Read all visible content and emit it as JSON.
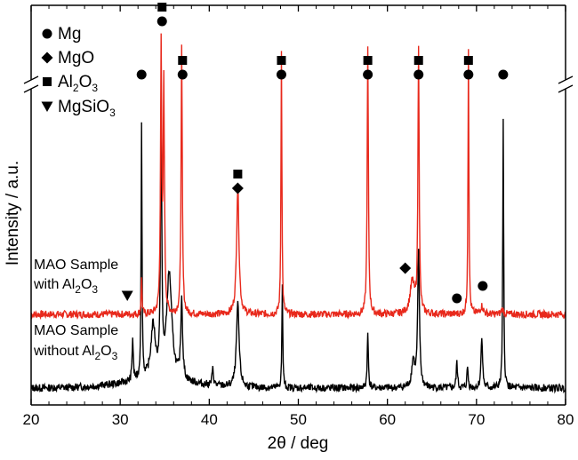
{
  "chart_data": {
    "type": "line",
    "xlabel": "2θ / deg",
    "ylabel": "Intensity / a.u.",
    "xlim": [
      20,
      80
    ],
    "xticks": [
      "20",
      "30",
      "40",
      "50",
      "60",
      "70",
      "80"
    ],
    "x_minor_step": 2,
    "y_axis_broken": true,
    "colors": {
      "with": "#e8291c",
      "without": "#000000",
      "axis": "#000000"
    },
    "legend": [
      {
        "marker": "circle",
        "base": "Mg",
        "sub": "",
        "tail": ""
      },
      {
        "marker": "diamond",
        "base": "MgO",
        "sub": "",
        "tail": ""
      },
      {
        "marker": "square",
        "base": "Al",
        "sub": "2",
        "tail": "O",
        "sub2": "3"
      },
      {
        "marker": "triangle-down",
        "base": "MgSiO",
        "sub": "3",
        "tail": ""
      }
    ],
    "series": [
      {
        "key": "with",
        "label_line1": "MAO Sample",
        "label_line2_base": "with Al",
        "label_line2_sub": "2",
        "label_line2_tail": "O",
        "label_line2_sub2": "3",
        "baseline": 1.0,
        "peaks": [
          [
            32.4,
            1.3,
            0.06
          ],
          [
            34.6,
            10.0,
            0.08
          ],
          [
            34.9,
            8.5,
            0.08
          ],
          [
            36.9,
            10.0,
            0.08
          ],
          [
            43.2,
            4.8,
            0.16
          ],
          [
            48.1,
            10.0,
            0.06
          ],
          [
            57.8,
            10.0,
            0.08
          ],
          [
            62.8,
            1.2,
            0.3
          ],
          [
            63.5,
            10.0,
            0.08
          ],
          [
            69.1,
            10.0,
            0.06
          ],
          [
            70.6,
            0.3,
            0.2
          ],
          [
            72.9,
            0.2,
            0.15
          ]
        ]
      },
      {
        "key": "without",
        "label_line1": "MAO Sample",
        "label_line2_base": "without Al",
        "label_line2_sub": "2",
        "label_line2_tail": "O",
        "label_line2_sub2": "3",
        "baseline": 0.0,
        "peaks": [
          [
            31.4,
            1.6,
            0.08
          ],
          [
            32.4,
            9.5,
            0.06
          ],
          [
            33.7,
            2.0,
            0.3
          ],
          [
            34.6,
            10.0,
            0.08
          ],
          [
            35.5,
            4.0,
            0.35
          ],
          [
            36.9,
            3.0,
            0.12
          ],
          [
            40.4,
            0.6,
            0.1
          ],
          [
            43.2,
            3.1,
            0.18
          ],
          [
            48.2,
            3.8,
            0.06
          ],
          [
            57.8,
            2.0,
            0.08
          ],
          [
            62.9,
            1.0,
            0.2
          ],
          [
            63.5,
            5.0,
            0.12
          ],
          [
            67.8,
            1.0,
            0.08
          ],
          [
            69.0,
            0.8,
            0.08
          ],
          [
            70.6,
            2.0,
            0.1
          ],
          [
            73.0,
            10.0,
            0.06
          ]
        ]
      }
    ],
    "annotations": [
      {
        "x": 32.4,
        "symbols": [
          "circle"
        ],
        "level": "high"
      },
      {
        "x": 34.7,
        "symbols": [
          "circle",
          "square"
        ],
        "level": "top"
      },
      {
        "x": 37.0,
        "symbols": [
          "circle",
          "square"
        ],
        "level": "high"
      },
      {
        "x": 43.2,
        "symbols": [
          "diamond",
          "square"
        ],
        "level": "mid"
      },
      {
        "x": 48.1,
        "symbols": [
          "circle",
          "square"
        ],
        "level": "high"
      },
      {
        "x": 57.8,
        "symbols": [
          "circle",
          "square"
        ],
        "level": "high"
      },
      {
        "x": 63.5,
        "symbols": [
          "circle",
          "square"
        ],
        "level": "high"
      },
      {
        "x": 69.1,
        "symbols": [
          "circle",
          "square"
        ],
        "level": "high"
      },
      {
        "x": 73.0,
        "symbols": [
          "circle"
        ],
        "level": "high"
      },
      {
        "x": 62.0,
        "symbols": [
          "diamond"
        ],
        "level": "low"
      },
      {
        "x": 67.8,
        "symbols": [
          "circle"
        ],
        "level": "lower"
      },
      {
        "x": 70.7,
        "symbols": [
          "circle"
        ],
        "level": "lowish"
      },
      {
        "x": 30.8,
        "symbols": [
          "triangle-down"
        ],
        "level": "tri"
      }
    ]
  }
}
